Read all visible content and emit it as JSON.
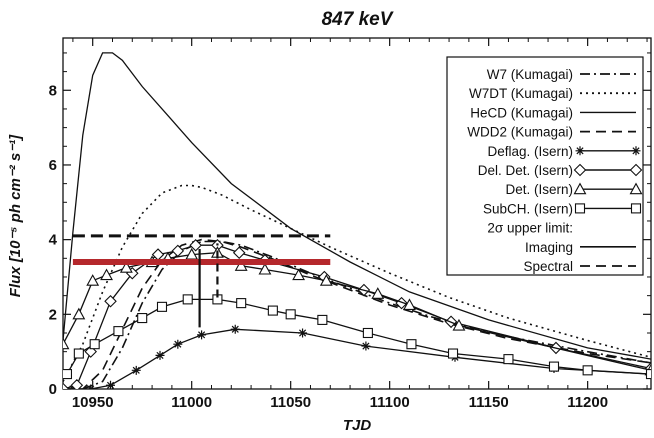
{
  "chart_data": {
    "type": "line",
    "title": "847 keV",
    "xlabel": "TJD",
    "ylabel": "Flux [10⁻⁵ ph cm⁻² s⁻¹]",
    "xlim": [
      10935,
      11232
    ],
    "ylim": [
      0,
      9.4
    ],
    "x_ticks": [
      "10950",
      "11000",
      "11050",
      "11100",
      "11150",
      "11200"
    ],
    "y_ticks": [
      "0",
      "2",
      "4",
      "6",
      "8"
    ],
    "grid": false,
    "legend_position": "top-right",
    "series": [
      {
        "name": "W7 (Kumagai)",
        "style": "dashdot",
        "color": "#111111",
        "x": [
          10935,
          10945,
          10955,
          10965,
          10975,
          10985,
          10995,
          11005,
          11015,
          11025,
          11040,
          11060,
          11080,
          11100,
          11120,
          11140,
          11160,
          11180,
          11200,
          11232
        ],
        "y": [
          0.0,
          0.0,
          0.2,
          1.1,
          2.3,
          3.2,
          3.7,
          3.95,
          3.95,
          3.85,
          3.55,
          3.1,
          2.7,
          2.3,
          1.95,
          1.65,
          1.4,
          1.2,
          1.0,
          0.7
        ]
      },
      {
        "name": "W7DT (Kumagai)",
        "style": "dotted",
        "color": "#111111",
        "x": [
          10935,
          10945,
          10955,
          10965,
          10975,
          10985,
          10995,
          11000,
          11005,
          11015,
          11030,
          11050,
          11070,
          11100,
          11130,
          11160,
          11200,
          11232
        ],
        "y": [
          0.2,
          1.2,
          2.6,
          3.8,
          4.7,
          5.25,
          5.45,
          5.45,
          5.4,
          5.2,
          4.8,
          4.3,
          3.8,
          3.1,
          2.45,
          1.9,
          1.3,
          0.85
        ]
      },
      {
        "name": "HeCD (Kumagai)",
        "style": "solid",
        "color": "#111111",
        "x": [
          10935,
          10940,
          10945,
          10950,
          10955,
          10960,
          10965,
          10975,
          10990,
          11000,
          11020,
          11050,
          11080,
          11110,
          11150,
          11200,
          11232
        ],
        "y": [
          1.3,
          4.2,
          6.8,
          8.4,
          9.0,
          9.0,
          8.8,
          8.1,
          7.2,
          6.6,
          5.5,
          4.3,
          3.4,
          2.6,
          1.85,
          1.1,
          0.8
        ]
      },
      {
        "name": "WDD2 (Kumagai)",
        "style": "dashed",
        "color": "#111111",
        "x": [
          10935,
          10945,
          10955,
          10965,
          10975,
          10985,
          10995,
          11005,
          11015,
          11025,
          11040,
          11060,
          11080,
          11100,
          11130,
          11160,
          11200,
          11232
        ],
        "y": [
          0.0,
          0.0,
          0.5,
          1.6,
          2.7,
          3.45,
          3.85,
          4.0,
          3.95,
          3.8,
          3.5,
          3.05,
          2.65,
          2.25,
          1.75,
          1.35,
          0.95,
          0.7
        ]
      },
      {
        "name": "Deflag. (Isern)",
        "style": "solid",
        "marker": "asterisk",
        "color": "#111111",
        "x": [
          10940,
          10949,
          10959,
          10972,
          10984,
          10993,
          11005,
          11022,
          11056,
          11088,
          11133,
          11183,
          11232
        ],
        "y": [
          0.0,
          0.0,
          0.1,
          0.5,
          0.9,
          1.2,
          1.45,
          1.6,
          1.5,
          1.15,
          0.85,
          0.55,
          0.4
        ]
      },
      {
        "name": "Del. Det. (Isern)",
        "style": "solid",
        "marker": "diamond",
        "color": "#111111",
        "x": [
          10935,
          10942,
          10949,
          10959,
          10970,
          10983,
          10993,
          11002,
          11013,
          11024,
          11037,
          11067,
          11087,
          11106,
          11131,
          11184,
          11232
        ],
        "y": [
          0.0,
          0.1,
          1.0,
          2.35,
          3.1,
          3.6,
          3.7,
          3.85,
          3.85,
          3.65,
          3.45,
          3.0,
          2.65,
          2.3,
          1.8,
          1.1,
          0.55
        ]
      },
      {
        "name": "Det. (Isern)",
        "style": "solid",
        "marker": "triangle",
        "color": "#111111",
        "x": [
          10935,
          10943,
          10950,
          10957,
          10967,
          10980,
          10988,
          11000,
          11013,
          11025,
          11037,
          11054,
          11068,
          11094,
          11110,
          11135,
          11232
        ],
        "y": [
          1.2,
          2.0,
          2.9,
          3.05,
          3.25,
          3.4,
          3.5,
          3.6,
          3.65,
          3.3,
          3.2,
          3.05,
          2.9,
          2.55,
          2.25,
          1.7,
          0.5
        ]
      },
      {
        "name": "SubCH. (Isern)",
        "style": "solid",
        "marker": "square",
        "color": "#111111",
        "x": [
          10937,
          10943,
          10951,
          10963,
          10975,
          10985,
          10998,
          11013,
          11025,
          11041,
          11050,
          11066,
          11089,
          11111,
          11132,
          11160,
          11183,
          11200,
          11232
        ],
        "y": [
          0.4,
          0.95,
          1.2,
          1.55,
          1.9,
          2.2,
          2.4,
          2.4,
          2.3,
          2.1,
          2.0,
          1.85,
          1.5,
          1.2,
          0.95,
          0.8,
          0.6,
          0.5,
          0.4
        ]
      }
    ],
    "legend_extra": {
      "upper_limit_title": "2σ upper limit:",
      "imaging_label": "Imaging",
      "spectral_label": "Spectral"
    },
    "upper_limits": [
      {
        "name": "Imaging",
        "style": "solid",
        "color": "#b5282c",
        "x_range": [
          10940,
          11070
        ],
        "y": 3.4
      },
      {
        "name": "Spectral",
        "style": "dashed",
        "color": "#111111",
        "x_range": [
          10940,
          11070
        ],
        "y": 4.1
      }
    ],
    "markers": [
      {
        "style": "solid",
        "x": 11004,
        "y_range": [
          1.65,
          3.75
        ]
      },
      {
        "style": "dashed",
        "x": 11013,
        "y_range": [
          2.45,
          3.9
        ]
      }
    ]
  }
}
